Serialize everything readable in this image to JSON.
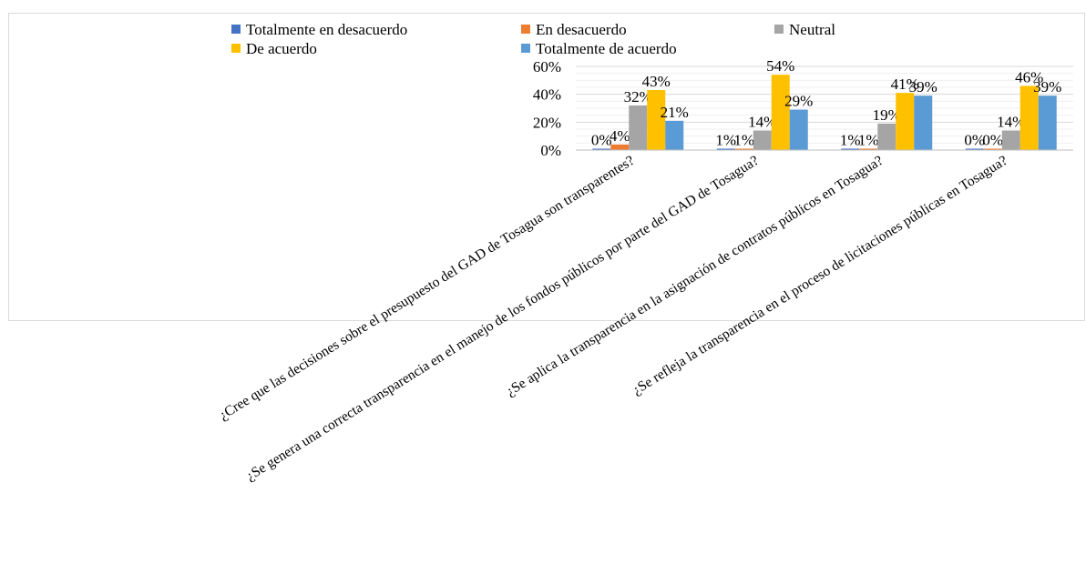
{
  "chart_data": {
    "type": "bar",
    "title": "",
    "xlabel": "",
    "ylabel": "",
    "ylim": [
      0,
      0.6
    ],
    "yticks": [
      0,
      0.2,
      0.4,
      0.6
    ],
    "ytick_labels": [
      "0%",
      "20%",
      "40%",
      "60%"
    ],
    "grid": true,
    "legend_position": "top",
    "categories": [
      "¿Cree que las decisiones sobre el presupuesto del GAD de Tosagua son transparentes?",
      "¿Se genera una correcta transparencia en el manejo de los fondos públicos por parte del GAD de Tosagua?",
      "¿Se aplica la transparencia en la asignación de contratos públicos en Tosagua?",
      "¿Se refleja la transparencia en el proceso de licitaciones públicas en Tosagua?"
    ],
    "series": [
      {
        "name": "Totalmente en desacuerdo",
        "color": "#4472c4",
        "values": [
          0.0,
          0.01,
          0.01,
          0.0
        ],
        "labels": [
          "0%",
          "1%",
          "1%",
          "0%"
        ]
      },
      {
        "name": "En desacuerdo",
        "color": "#ed7d31",
        "values": [
          0.04,
          0.01,
          0.01,
          0.0
        ],
        "labels": [
          "4%",
          "1%",
          "1%",
          "0%"
        ]
      },
      {
        "name": "Neutral",
        "color": "#a5a5a5",
        "values": [
          0.32,
          0.14,
          0.19,
          0.14
        ],
        "labels": [
          "32%",
          "14%",
          "19%",
          "14%"
        ]
      },
      {
        "name": "De acuerdo",
        "color": "#ffc000",
        "values": [
          0.43,
          0.54,
          0.41,
          0.46
        ],
        "labels": [
          "43%",
          "54%",
          "41%",
          "46%"
        ]
      },
      {
        "name": "Totalmente de acuerdo",
        "color": "#5b9bd5",
        "values": [
          0.21,
          0.29,
          0.39,
          0.39
        ],
        "labels": [
          "21%",
          "29%",
          "39%",
          "39%"
        ]
      }
    ]
  }
}
